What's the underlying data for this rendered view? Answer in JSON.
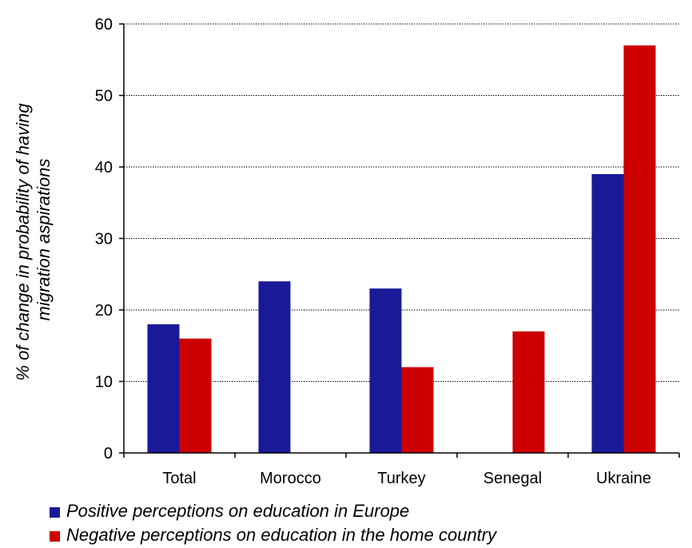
{
  "chart_data": {
    "type": "bar",
    "categories": [
      "Total",
      "Morocco",
      "Turkey",
      "Senegal",
      "Ukraine"
    ],
    "series": [
      {
        "name": "Positive perceptions on education in Europe",
        "color": "#1a1a99",
        "values": [
          18,
          24,
          23,
          null,
          39
        ]
      },
      {
        "name": "Negative perceptions on education in the home country",
        "color": "#cc0000",
        "values": [
          16,
          null,
          12,
          17,
          57
        ]
      }
    ],
    "ylabel_lines": [
      "% of change in probability of  having",
      "migration aspirations"
    ],
    "ylim": [
      0,
      60
    ],
    "yticks": [
      0,
      10,
      20,
      30,
      40,
      50,
      60
    ],
    "grid": true,
    "legend_position": "bottom-left"
  }
}
